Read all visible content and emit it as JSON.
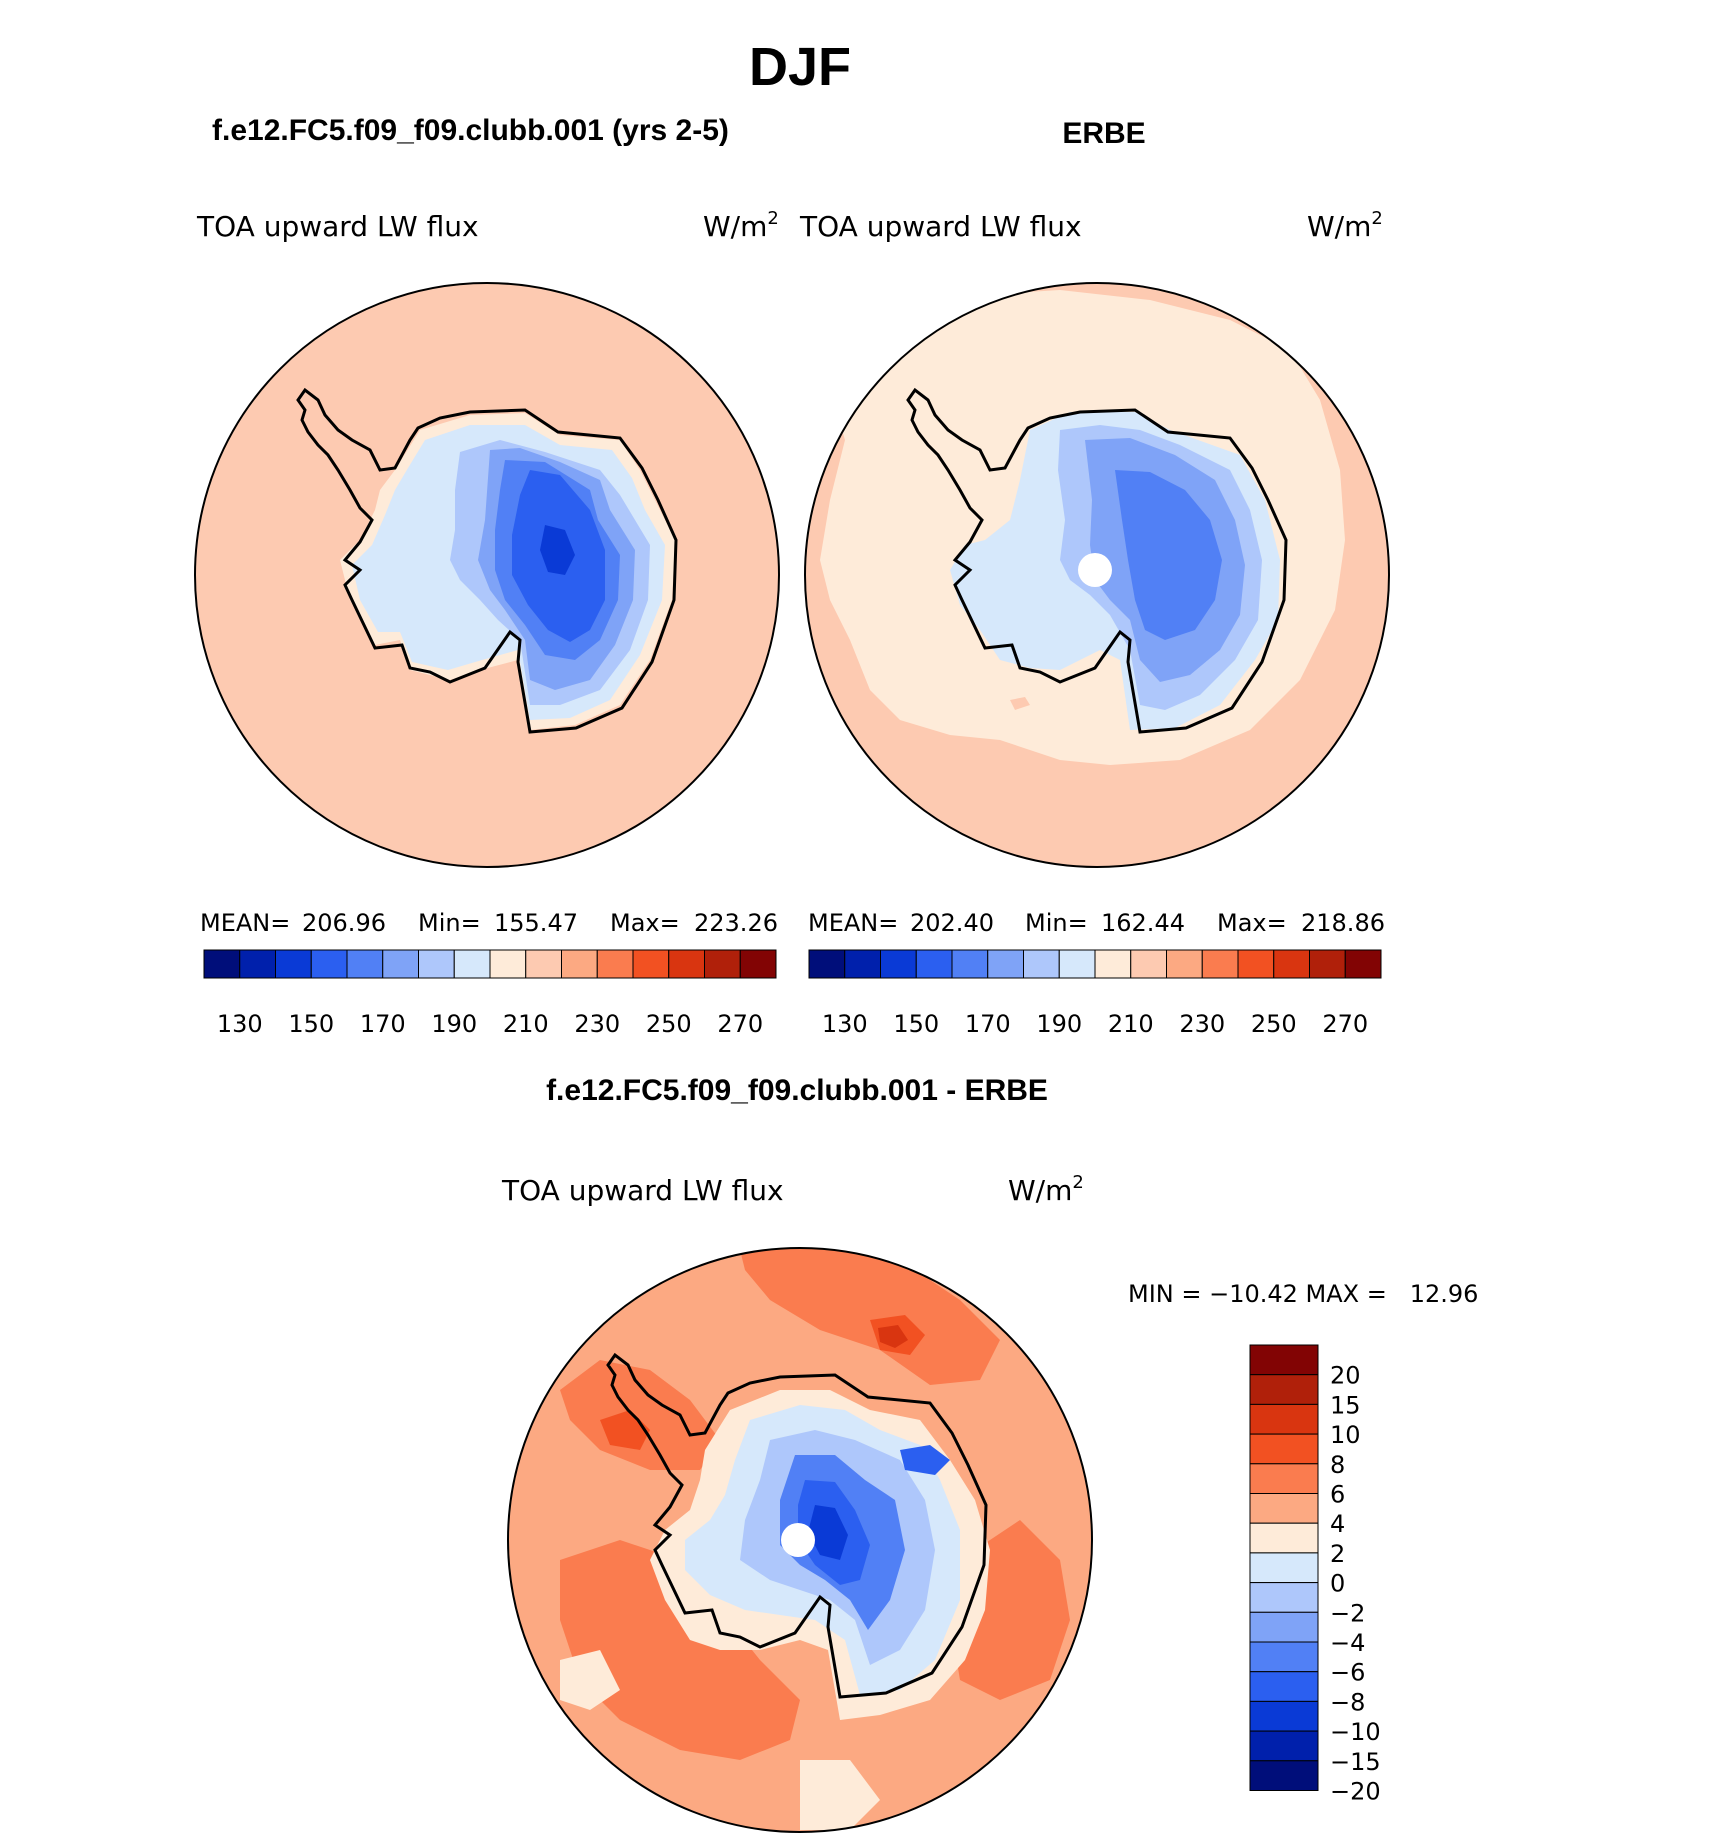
{
  "chart_data": [
    {
      "type": "contour-map",
      "projection": "south-polar-stereographic",
      "title": "DJF",
      "subtitle": "f.e12.FC5.f09_f09.clubb.001 (yrs 2-5)",
      "variable": "TOA upward LW flux",
      "units": "W/m",
      "units_sup": "2",
      "stats": {
        "mean_label": "MEAN=",
        "mean": "206.96",
        "min_label": "Min=",
        "min": "155.47",
        "max_label": "Max=",
        "max": "223.26"
      },
      "colorbar_ticks": [
        "130",
        "150",
        "170",
        "190",
        "210",
        "230",
        "250",
        "270"
      ],
      "colorbar_colors": [
        "#000e7a",
        "#0020ac",
        "#0a3ad6",
        "#2b5ff0",
        "#5180f5",
        "#7fa3f7",
        "#aec7fb",
        "#d6e8fb",
        "#feebd9",
        "#fdcab1",
        "#fca982",
        "#fa7c4f",
        "#f25122",
        "#d93510",
        "#b0200a",
        "#820404"
      ],
      "colors": {
        "ocean": "#fdcab1",
        "land_edge": "#feebd9",
        "ring1": "#d6e8fb",
        "ring2": "#aec7fb",
        "ring3": "#7fa3f7",
        "ring4": "#5180f5",
        "core": "#2b5ff0"
      }
    },
    {
      "type": "contour-map",
      "projection": "south-polar-stereographic",
      "subtitle": "ERBE",
      "variable": "TOA upward LW flux",
      "units": "W/m",
      "units_sup": "2",
      "stats": {
        "mean_label": "MEAN=",
        "mean": "202.40",
        "min_label": "Min=",
        "min": "162.44",
        "max_label": "Max=",
        "max": "218.86"
      },
      "colorbar_ticks": [
        "130",
        "150",
        "170",
        "190",
        "210",
        "230",
        "250",
        "270"
      ],
      "colorbar_colors": [
        "#000e7a",
        "#0020ac",
        "#0a3ad6",
        "#2b5ff0",
        "#5180f5",
        "#7fa3f7",
        "#aec7fb",
        "#d6e8fb",
        "#feebd9",
        "#fdcab1",
        "#fca982",
        "#fa7c4f",
        "#f25122",
        "#d93510",
        "#b0200a",
        "#820404"
      ],
      "colors": {
        "ocean_outer": "#fdcab1",
        "ocean_inner": "#feebd9",
        "ring1": "#d6e8fb",
        "ring2": "#aec7fb",
        "ring3": "#7fa3f7",
        "ring4": "#5180f5"
      }
    },
    {
      "type": "contour-map",
      "projection": "south-polar-stereographic",
      "subtitle": "f.e12.FC5.f09_f09.clubb.001 - ERBE",
      "variable": "TOA upward LW flux",
      "units": "W/m",
      "units_sup": "2",
      "minmax_label": "MIN = −10.42 MAX =   12.96",
      "min": -10.42,
      "max": 12.96,
      "colorbar_ticks": [
        "20",
        "15",
        "10",
        "8",
        "6",
        "4",
        "2",
        "0",
        "−2",
        "−4",
        "−6",
        "−8",
        "−10",
        "−15",
        "−20"
      ],
      "colorbar_colors": [
        "#820404",
        "#b0200a",
        "#d93510",
        "#f25122",
        "#fa7c4f",
        "#fca982",
        "#feebd9",
        "#d6e8fb",
        "#aec7fb",
        "#7fa3f7",
        "#5180f5",
        "#2b5ff0",
        "#0a3ad6",
        "#0020ac",
        "#000e7a"
      ],
      "colors": {
        "base": "#fca982",
        "warm": "#fa7c4f",
        "hot": "#f25122",
        "hotter": "#d93510",
        "mild": "#feebd9",
        "cool": "#d6e8fb",
        "cooler": "#aec7fb",
        "cold": "#5180f5",
        "colder": "#2b5ff0",
        "coldest": "#0a3ad6"
      }
    }
  ]
}
